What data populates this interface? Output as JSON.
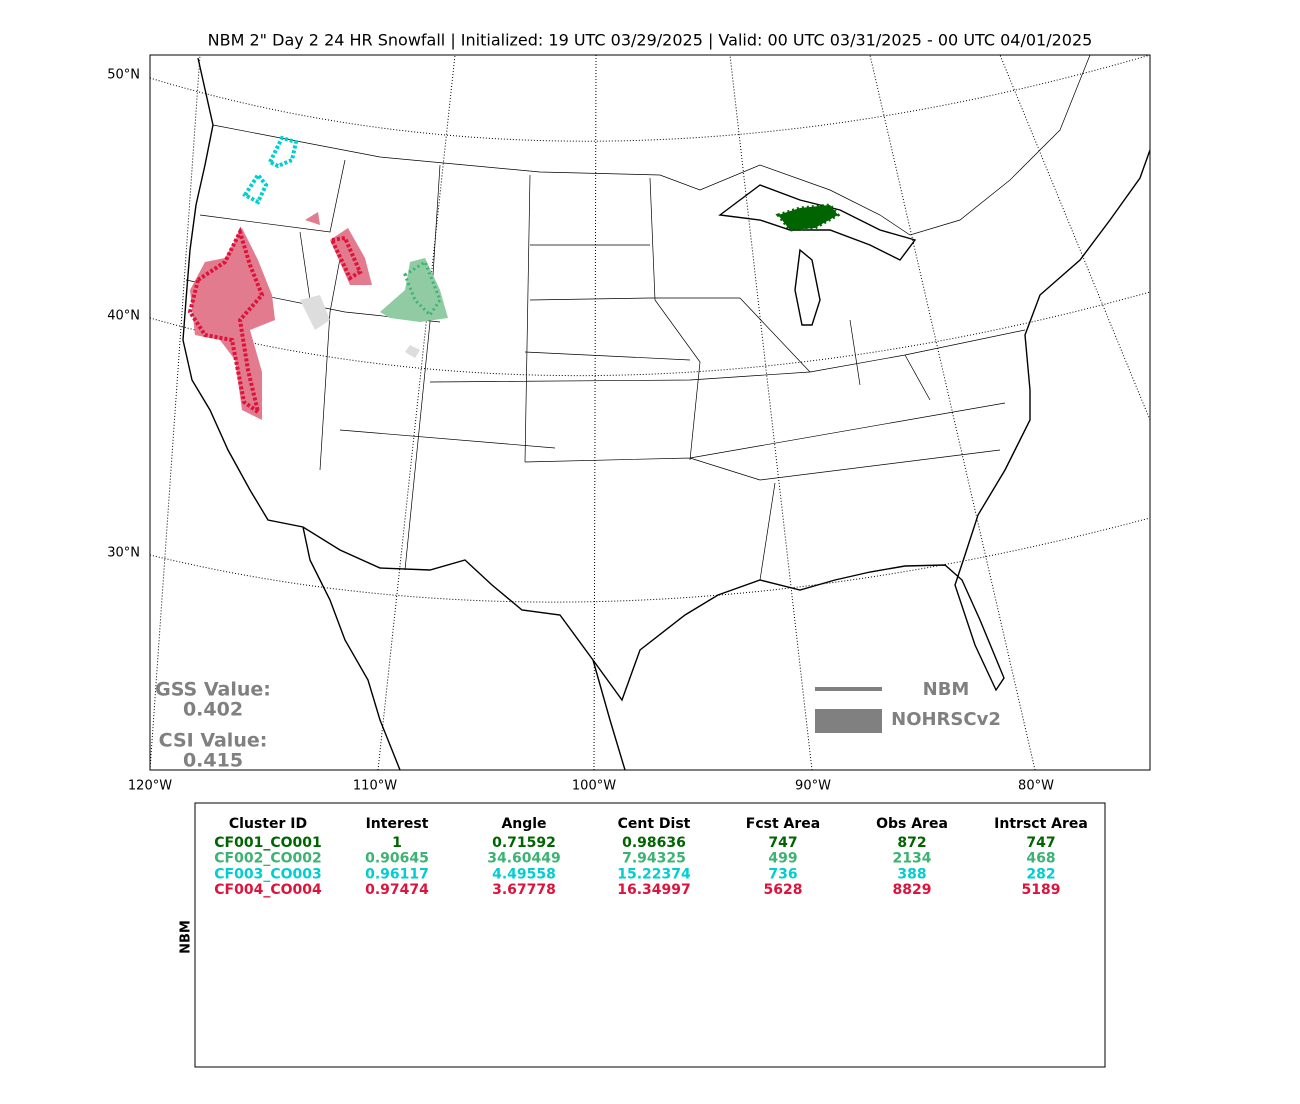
{
  "header": {
    "title": "NBM 2\" Day 2 24 HR Snowfall | Initialized: 19 UTC 03/29/2025 | Valid: 00 UTC 03/31/2025 - 00 UTC 04/01/2025"
  },
  "map": {
    "lat_labels": [
      "50°N",
      "40°N",
      "30°N"
    ],
    "lon_labels": [
      "120°W",
      "110°W",
      "100°W",
      "90°W",
      "80°W"
    ]
  },
  "scores": {
    "gss_label": "GSS Value:",
    "gss": 0.402,
    "csi_label": "CSI Value:",
    "csi": 0.415
  },
  "legend": {
    "items": [
      "NBM",
      "NOHRSCv2"
    ]
  },
  "table": {
    "side_label": "NBM",
    "columns": [
      "Cluster ID",
      "Interest",
      "Angle",
      "Cent Dist",
      "Fcst Area",
      "Obs Area",
      "Intrsct Area"
    ],
    "row_colors": [
      "#006400",
      "#3cb371",
      "#00ced1",
      "#dc143c"
    ],
    "rows": [
      [
        "CF001_CO001",
        1,
        0.71592,
        0.98636,
        747,
        872,
        747
      ],
      [
        "CF002_CO002",
        0.90645,
        34.60449,
        7.94325,
        499,
        2134,
        468
      ],
      [
        "CF003_CO003",
        0.96117,
        4.49558,
        15.22374,
        736,
        388,
        282
      ],
      [
        "CF004_CO004",
        0.97474,
        3.67778,
        16.34997,
        5628,
        8829,
        5189
      ]
    ]
  }
}
